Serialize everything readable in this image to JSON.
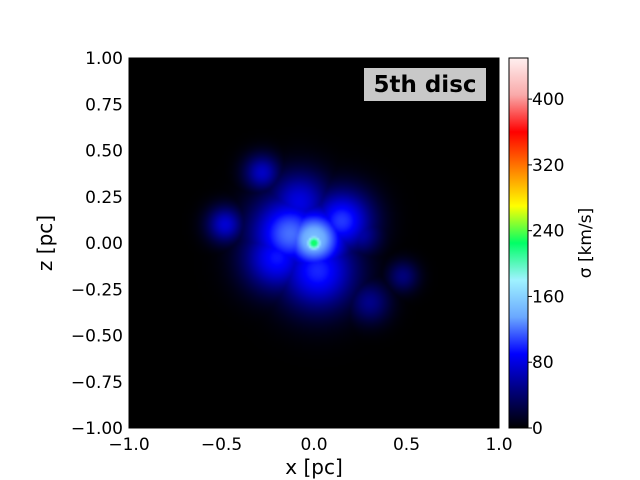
{
  "chart_data": {
    "type": "heatmap",
    "title": "",
    "annotation": "5th disc",
    "xlabel": "x [pc]",
    "ylabel": "z [pc]",
    "xlim": [
      -1.0,
      1.0
    ],
    "ylim": [
      -1.0,
      1.0
    ],
    "x_ticks": [
      -1.0,
      -0.5,
      0.0,
      0.5,
      1.0
    ],
    "x_tick_labels": [
      "−1.0",
      "−0.5",
      "0.0",
      "0.5",
      "1.0"
    ],
    "y_ticks": [
      1.0,
      0.75,
      0.5,
      0.25,
      0.0,
      -0.25,
      -0.5,
      -0.75,
      -1.0
    ],
    "y_tick_labels": [
      "1.00",
      "0.75",
      "0.50",
      "0.25",
      "0.00",
      "−0.25",
      "−0.50",
      "−0.75",
      "−1.00"
    ],
    "grid": false,
    "colorbar": {
      "label": "σ [km/s]",
      "range": [
        0,
        450
      ],
      "ticks": [
        0,
        80,
        160,
        240,
        320,
        400
      ],
      "tick_labels": [
        "0",
        "80",
        "160",
        "240",
        "320",
        "400"
      ],
      "colormap": [
        "#000000",
        "#00007a",
        "#0000ff",
        "#6aa8ff",
        "#9ff2ff",
        "#00ff66",
        "#ffff00",
        "#ff8000",
        "#ff0000",
        "#f9a9a9",
        "#fff0f0"
      ]
    },
    "background_value": 0,
    "features": [
      {
        "x": 0.0,
        "z": 0.0,
        "peak_sigma": 230,
        "extent": 0.04
      },
      {
        "x": 0.0,
        "z": 0.02,
        "peak_sigma": 150,
        "extent": 0.13
      },
      {
        "x": -0.13,
        "z": 0.05,
        "peak_sigma": 120,
        "extent": 0.15
      },
      {
        "x": 0.15,
        "z": 0.12,
        "peak_sigma": 105,
        "extent": 0.12
      },
      {
        "x": -0.08,
        "z": 0.22,
        "peak_sigma": 80,
        "extent": 0.12
      },
      {
        "x": 0.02,
        "z": -0.15,
        "peak_sigma": 100,
        "extent": 0.15
      },
      {
        "x": -0.2,
        "z": -0.08,
        "peak_sigma": 95,
        "extent": 0.13
      },
      {
        "x": -0.28,
        "z": 0.38,
        "peak_sigma": 70,
        "extent": 0.07
      },
      {
        "x": -0.48,
        "z": 0.1,
        "peak_sigma": 75,
        "extent": 0.07
      },
      {
        "x": 0.25,
        "z": 0.05,
        "peak_sigma": 60,
        "extent": 0.08
      },
      {
        "x": 0.3,
        "z": -0.32,
        "peak_sigma": 50,
        "extent": 0.08
      },
      {
        "x": 0.48,
        "z": -0.18,
        "peak_sigma": 45,
        "extent": 0.06
      }
    ]
  }
}
